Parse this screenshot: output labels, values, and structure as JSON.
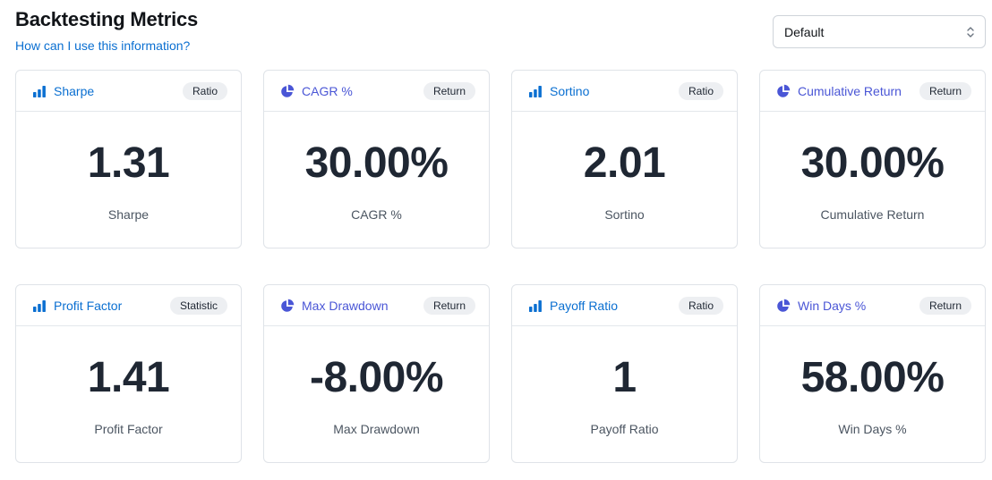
{
  "header": {
    "title": "Backtesting Metrics",
    "help_link": "How can I use this information?"
  },
  "selector": {
    "value": "Default",
    "icon": "chevron-up-down-icon"
  },
  "colors": {
    "link": "#0a6fd1",
    "ratio_accent": "#0a6fd1",
    "return_accent": "#4a56d6",
    "badge_bg": "#edeff2",
    "value_text": "#1f2733"
  },
  "cards": [
    {
      "title": "Sharpe",
      "badge": "Ratio",
      "value": "1.31",
      "label": "Sharpe",
      "icon": "bar-chart-icon"
    },
    {
      "title": "CAGR %",
      "badge": "Return",
      "value": "30.00%",
      "label": "CAGR %",
      "icon": "pie-chart-icon"
    },
    {
      "title": "Sortino",
      "badge": "Ratio",
      "value": "2.01",
      "label": "Sortino",
      "icon": "bar-chart-icon"
    },
    {
      "title": "Cumulative Return",
      "badge": "Return",
      "value": "30.00%",
      "label": "Cumulative Return",
      "icon": "pie-chart-icon"
    },
    {
      "title": "Profit Factor",
      "badge": "Statistic",
      "value": "1.41",
      "label": "Profit Factor",
      "icon": "bar-chart-icon"
    },
    {
      "title": "Max Drawdown",
      "badge": "Return",
      "value": "-8.00%",
      "label": "Max Drawdown",
      "icon": "pie-chart-icon"
    },
    {
      "title": "Payoff Ratio",
      "badge": "Ratio",
      "value": "1",
      "label": "Payoff Ratio",
      "icon": "bar-chart-icon"
    },
    {
      "title": "Win Days %",
      "badge": "Return",
      "value": "58.00%",
      "label": "Win Days %",
      "icon": "pie-chart-icon"
    }
  ]
}
